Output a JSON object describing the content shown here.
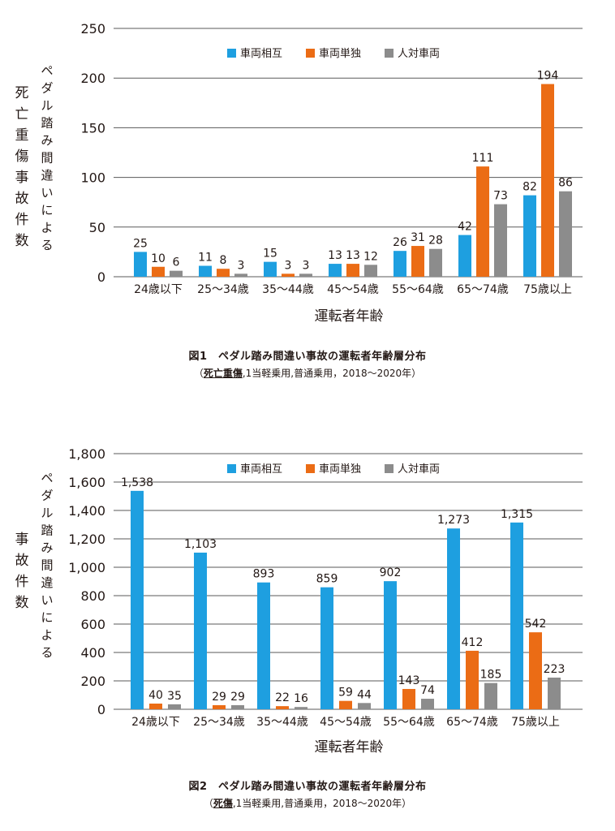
{
  "chart_data": [
    {
      "type": "bar",
      "categories": [
        "24歳以下",
        "25～34歳",
        "35～44歳",
        "45～54歳",
        "55～64歳",
        "65～74歳",
        "75歳以上"
      ],
      "series": [
        {
          "name": "車両相互",
          "color": "#1E9FE0",
          "values": [
            25,
            11,
            15,
            13,
            26,
            42,
            82
          ]
        },
        {
          "name": "車両単独",
          "color": "#EB6C15",
          "values": [
            10,
            8,
            3,
            13,
            31,
            111,
            194
          ]
        },
        {
          "name": "人対車両",
          "color": "#8C8C8C",
          "values": [
            6,
            3,
            3,
            12,
            28,
            73,
            86
          ]
        }
      ],
      "value_labels": [
        [
          "25",
          "11",
          "15",
          "13",
          "26",
          "42",
          "82"
        ],
        [
          "10",
          "8",
          "3",
          "13",
          "31",
          "111",
          "194"
        ],
        [
          "6",
          "3",
          "3",
          "12",
          "28",
          "73",
          "86"
        ]
      ],
      "yticks": [
        0,
        50,
        100,
        150,
        200,
        250
      ],
      "ytick_labels": [
        "0",
        "50",
        "100",
        "150",
        "200",
        "250"
      ],
      "ylim": [
        0,
        250
      ],
      "ylabel_main": [
        "死",
        "亡",
        "重",
        "傷",
        "事",
        "故",
        "件",
        "数"
      ],
      "ylabel_sub": [
        "ペ",
        "ダ",
        "ル",
        "踏",
        "み",
        "間",
        "違",
        "い",
        "に",
        "よ",
        "る"
      ],
      "xlabel": "運転者年齢",
      "legend_position": "top-center",
      "caption": {
        "title": "図1　ペダル踏み間違い事故の運転者年齢層分布",
        "note_open": "（",
        "note_underlined": "死亡重傷",
        "note_rest": ",1当軽乗用,普通乗用，2018～2020年）"
      }
    },
    {
      "type": "bar",
      "categories": [
        "24歳以下",
        "25～34歳",
        "35～44歳",
        "45～54歳",
        "55～64歳",
        "65～74歳",
        "75歳以上"
      ],
      "series": [
        {
          "name": "車両相互",
          "color": "#1E9FE0",
          "values": [
            1538,
            1103,
            893,
            859,
            902,
            1273,
            1315
          ]
        },
        {
          "name": "車両単独",
          "color": "#EB6C15",
          "values": [
            40,
            29,
            22,
            59,
            143,
            412,
            542
          ]
        },
        {
          "name": "人対車両",
          "color": "#8C8C8C",
          "values": [
            35,
            29,
            16,
            44,
            74,
            185,
            223
          ]
        }
      ],
      "value_labels": [
        [
          "1,538",
          "1,103",
          "893",
          "859",
          "902",
          "1,273",
          "1,315"
        ],
        [
          "40",
          "29",
          "22",
          "59",
          "143",
          "412",
          "542"
        ],
        [
          "35",
          "29",
          "16",
          "44",
          "74",
          "185",
          "223"
        ]
      ],
      "yticks": [
        0,
        200,
        400,
        600,
        800,
        1000,
        1200,
        1400,
        1600,
        1800
      ],
      "ytick_labels": [
        "0",
        "200",
        "400",
        "600",
        "800",
        "1,000",
        "1,200",
        "1,400",
        "1,600",
        "1,800"
      ],
      "ylim": [
        0,
        1800
      ],
      "ylabel_main": [
        "事",
        "故",
        "件",
        "数"
      ],
      "ylabel_sub": [
        "ペ",
        "ダ",
        "ル",
        "踏",
        "み",
        "間",
        "違",
        "い",
        "に",
        "よ",
        "る"
      ],
      "xlabel": "運転者年齢",
      "legend_position": "top-center",
      "caption": {
        "title": "図2　ペダル踏み間違い事故の運転者年齢層分布",
        "note_open": "（",
        "note_underlined": "死傷",
        "note_rest": ",1当軽乗用,普通乗用，2018～2020年）"
      }
    }
  ]
}
